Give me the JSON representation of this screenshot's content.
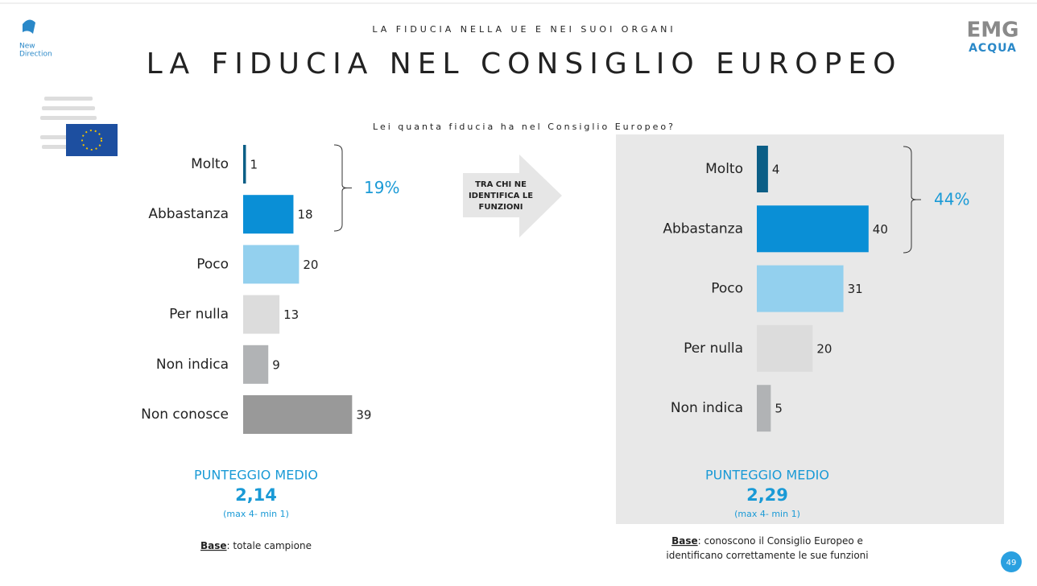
{
  "header": {
    "kicker": "LA FIDUCIA NELLA UE E NEI SUOI ORGANI",
    "title": "LA FIDUCIA NEL CONSIGLIO EUROPEO",
    "question": "Lei quanta fiducia ha nel Consiglio Europeo?",
    "logo_left": [
      "New",
      "Direction"
    ],
    "logo_right": [
      "EMG",
      "ACQUA"
    ]
  },
  "arrow": {
    "lines": [
      "TRA CHI  NE",
      "IDENTIFICA LE",
      "FUNZIONI"
    ]
  },
  "page_number": "49",
  "chart_data": [
    {
      "type": "bar",
      "orientation": "horizontal",
      "categories": [
        "Molto",
        "Abbastanza",
        "Poco",
        "Per nulla",
        "Non indica",
        "Non conosce"
      ],
      "values": [
        1,
        18,
        20,
        13,
        9,
        39
      ],
      "colors": [
        "#0b5e86",
        "#0a8fd6",
        "#93d0ee",
        "#dcdcdc",
        "#b1b3b5",
        "#999999"
      ],
      "bracket_label": "19%",
      "score_title": "PUNTEGGIO MEDIO",
      "score": "2,14",
      "score_note": "(max 4- min 1)",
      "base_label": "Base",
      "base_text": [
        ": totale campione"
      ]
    },
    {
      "type": "bar",
      "orientation": "horizontal",
      "categories": [
        "Molto",
        "Abbastanza",
        "Poco",
        "Per nulla",
        "Non indica"
      ],
      "values": [
        4,
        40,
        31,
        20,
        5
      ],
      "colors": [
        "#0b5e86",
        "#0a8fd6",
        "#93d0ee",
        "#dcdcdc",
        "#b1b3b5"
      ],
      "bracket_label": "44%",
      "score_title": "PUNTEGGIO MEDIO",
      "score": "2,29",
      "score_note": "(max 4- min 1)",
      "base_label": "Base",
      "base_text": [
        ": conoscono il Consiglio Europeo e",
        "identificano correttamente le sue funzioni"
      ]
    }
  ]
}
